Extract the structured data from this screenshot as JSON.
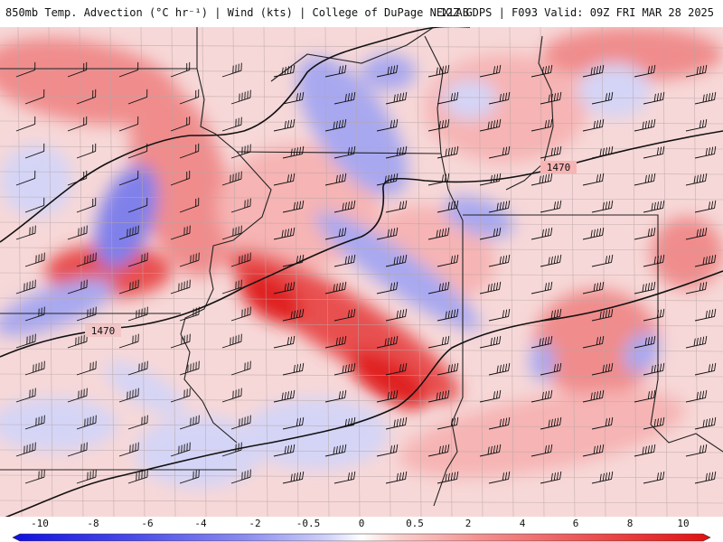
{
  "header": {
    "left": "850mb Temp. Advection (°C hr⁻¹) | Wind (kts) | College of DuPage NEXLAB",
    "right": "12Z GDPS | F093 Valid: 09Z FRI MAR 28 2025"
  },
  "contour_labels": [
    "1470",
    "1470"
  ],
  "color_scale": {
    "labels": [
      "-10",
      "-8",
      "-6",
      "-4",
      "-2",
      "-0.5",
      "0",
      "0.5",
      "2",
      "4",
      "6",
      "8",
      "10"
    ],
    "colors": [
      "#1010e0",
      "#3a3ae6",
      "#5a5aea",
      "#7a7aee",
      "#9a9af2",
      "#c4c4f8",
      "#f4f4ff",
      "#fff0f0",
      "#fcc8c8",
      "#f6a0a0",
      "#f07474",
      "#ea4848",
      "#e01818"
    ]
  },
  "fill_colors": {
    "background": "#f7d8d8",
    "warm_light": "#f6b4b4",
    "warm_mid": "#f08c8c",
    "warm_strong": "#e85050",
    "warm_max": "#e02020",
    "cool_light": "#d4d4f6",
    "cool_mid": "#a8a8f0",
    "cool_strong": "#8080ea"
  }
}
